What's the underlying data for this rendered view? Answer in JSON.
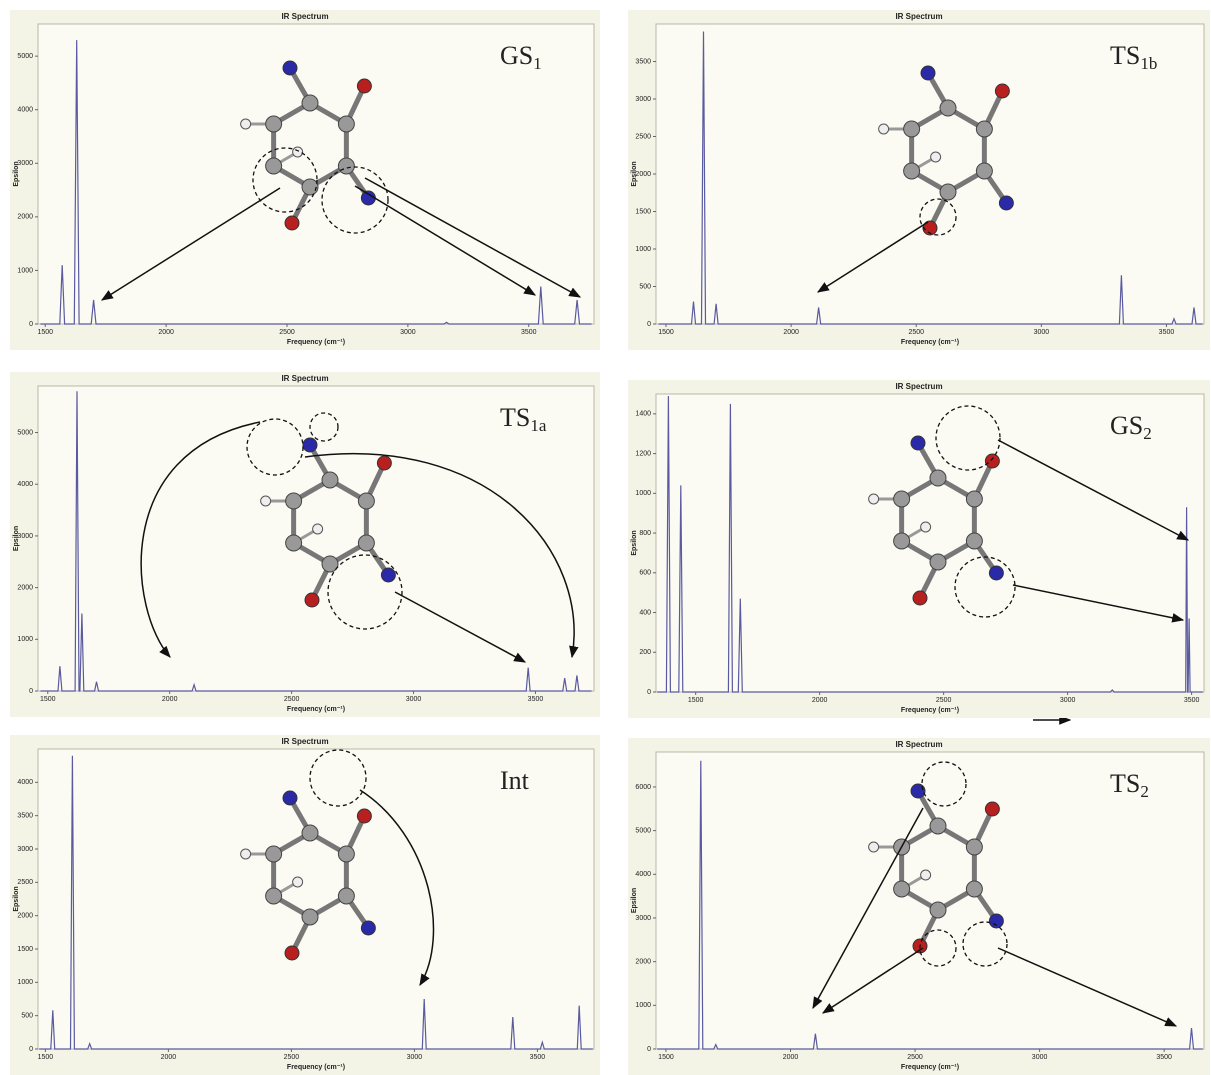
{
  "chart_data": [
    {
      "type": "line",
      "title": "IR Spectrum",
      "x_label": "Frequency (cm⁻¹)",
      "y_label": "Epsilon",
      "label": {
        "base": "GS",
        "sub": "1"
      },
      "color": "#5a5aa0",
      "x": [
        1480,
        1560,
        1570,
        1580,
        1620,
        1630,
        1640,
        1690,
        1700,
        1710,
        3150,
        3160,
        3170,
        3540,
        3550,
        3560,
        3690,
        3700,
        3710,
        3760
      ],
      "values": [
        0,
        0,
        1100,
        0,
        0,
        5300,
        0,
        0,
        450,
        0,
        0,
        30,
        0,
        0,
        700,
        0,
        0,
        450,
        0,
        0
      ],
      "xlim": [
        1470,
        3770
      ],
      "ylim": [
        0,
        5600
      ],
      "xticks": [
        1500,
        2000,
        2500,
        3000,
        3500
      ],
      "yticks": [
        0,
        1000,
        2000,
        3000,
        4000,
        5000
      ]
    },
    {
      "type": "line",
      "title": "IR Spectrum",
      "x_label": "Frequency (cm⁻¹)",
      "y_label": "Epsilon",
      "label": {
        "base": "TS",
        "sub": "1b"
      },
      "color": "#5a5aa0",
      "x": [
        1470,
        1602,
        1610,
        1618,
        1642,
        1650,
        1658,
        1692,
        1700,
        1708,
        2102,
        2110,
        2118,
        3312,
        3320,
        3328,
        3522,
        3530,
        3538,
        3602,
        3610,
        3618,
        3645
      ],
      "values": [
        0,
        0,
        300,
        0,
        0,
        3900,
        0,
        0,
        270,
        0,
        0,
        220,
        0,
        0,
        650,
        0,
        0,
        70,
        0,
        0,
        220,
        0,
        0
      ],
      "xlim": [
        1460,
        3650
      ],
      "ylim": [
        0,
        4000
      ],
      "xticks": [
        1500,
        2000,
        2500,
        3000,
        3500
      ],
      "yticks": [
        0,
        500,
        1000,
        1500,
        2000,
        2500,
        3000,
        3500
      ]
    },
    {
      "type": "line",
      "title": "IR Spectrum",
      "x_label": "Frequency (cm⁻¹)",
      "y_label": "Epsilon",
      "label": {
        "base": "TS",
        "sub": "1a"
      },
      "color": "#5a5aa0",
      "x": [
        1470,
        1542,
        1550,
        1558,
        1612,
        1620,
        1628,
        1632,
        1640,
        1648,
        1692,
        1700,
        1708,
        2092,
        2100,
        2108,
        3462,
        3470,
        3478,
        3612,
        3620,
        3628,
        3662,
        3670,
        3678,
        3730
      ],
      "values": [
        0,
        0,
        480,
        0,
        0,
        5800,
        0,
        0,
        1500,
        0,
        0,
        180,
        0,
        0,
        120,
        0,
        0,
        450,
        0,
        0,
        250,
        0,
        0,
        300,
        0,
        0
      ],
      "xlim": [
        1460,
        3740
      ],
      "ylim": [
        0,
        5900
      ],
      "xticks": [
        1500,
        2000,
        2500,
        3000,
        3500
      ],
      "yticks": [
        0,
        1000,
        2000,
        3000,
        4000,
        5000
      ]
    },
    {
      "type": "line",
      "title": "IR Spectrum",
      "x_label": "Frequency (cm⁻¹)",
      "y_label": "Epsilon",
      "label": {
        "base": "GS",
        "sub": "2"
      },
      "color": "#5a5aa0",
      "x": [
        1345,
        1382,
        1390,
        1398,
        1432,
        1440,
        1448,
        1632,
        1640,
        1648,
        1672,
        1680,
        1688,
        3172,
        3180,
        3188,
        3476,
        3480,
        3484,
        3486,
        3490,
        3494,
        3545
      ],
      "values": [
        0,
        0,
        1490,
        0,
        0,
        1040,
        0,
        0,
        1450,
        0,
        0,
        470,
        0,
        0,
        10,
        0,
        0,
        930,
        0,
        0,
        370,
        0,
        0
      ],
      "xlim": [
        1340,
        3550
      ],
      "ylim": [
        0,
        1500
      ],
      "xticks": [
        1500,
        2000,
        2500,
        3000,
        3500
      ],
      "yticks": [
        0,
        200,
        400,
        600,
        800,
        1000,
        1200,
        1400
      ]
    },
    {
      "type": "line",
      "title": "IR Spectrum",
      "x_label": "Frequency (cm⁻¹)",
      "y_label": "Epsilon",
      "label": {
        "base": "Int",
        "sub": ""
      },
      "color": "#5a5aa0",
      "x": [
        1475,
        1522,
        1530,
        1538,
        1602,
        1610,
        1618,
        1672,
        1680,
        1688,
        3032,
        3040,
        3048,
        3392,
        3400,
        3408,
        3512,
        3520,
        3528,
        3662,
        3670,
        3678,
        3725
      ],
      "values": [
        0,
        0,
        580,
        0,
        0,
        4400,
        0,
        0,
        80,
        0,
        0,
        750,
        0,
        0,
        480,
        0,
        0,
        100,
        0,
        0,
        650,
        0,
        0
      ],
      "xlim": [
        1470,
        3730
      ],
      "ylim": [
        0,
        4500
      ],
      "xticks": [
        1500,
        2000,
        2500,
        3000,
        3500
      ],
      "yticks": [
        0,
        500,
        1000,
        1500,
        2000,
        2500,
        3000,
        3500,
        4000
      ]
    },
    {
      "type": "line",
      "title": "IR Spectrum",
      "x_label": "Frequency (cm⁻¹)",
      "y_label": "Epsilon",
      "label": {
        "base": "TS",
        "sub": "2"
      },
      "color": "#5a5aa0",
      "x": [
        1465,
        1632,
        1640,
        1648,
        1692,
        1700,
        1708,
        2092,
        2100,
        2108,
        3602,
        3610,
        3618,
        3655
      ],
      "values": [
        0,
        0,
        6600,
        0,
        0,
        100,
        0,
        0,
        350,
        0,
        0,
        480,
        0,
        0
      ],
      "xlim": [
        1460,
        3660
      ],
      "ylim": [
        0,
        6800
      ],
      "xticks": [
        1500,
        2000,
        2500,
        3000,
        3500
      ],
      "yticks": [
        0,
        1000,
        2000,
        3000,
        4000,
        5000,
        6000
      ]
    }
  ]
}
